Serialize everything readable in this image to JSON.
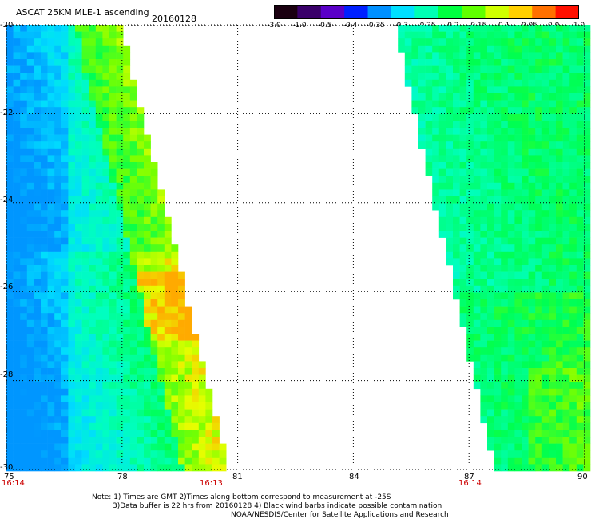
{
  "header": {
    "title": "ASCAT 25KM MLE-1 ascending",
    "date": "20160128"
  },
  "colorbar": {
    "labels": [
      "-3.0",
      "-1.0",
      "-0.5",
      "-0.4",
      "-0.35",
      "-0.3",
      "-0.25",
      "-0.2",
      "-0.15",
      "-0.1",
      "-0.05",
      "0.0",
      "1.0"
    ],
    "colors": [
      "#1a0010",
      "#3a006a",
      "#5a00c8",
      "#0020ff",
      "#0090ff",
      "#00e0ff",
      "#00ffb4",
      "#00ff40",
      "#60ff00",
      "#d0ff00",
      "#ffd000",
      "#ff7000",
      "#ff1000"
    ]
  },
  "map": {
    "y_ticks": [
      "-20",
      "-22",
      "-24",
      "-26",
      "-28",
      "-30"
    ],
    "x_ticks": [
      "75",
      "78",
      "81",
      "84",
      "87",
      "90"
    ],
    "time_labels": [
      "16:14",
      "16:13",
      "16:14"
    ]
  },
  "notes": {
    "line1": "Note: 1) Times are GMT 2)Times along bottom correspond to measurement at -25S",
    "line2": "3)Data buffer is 22 hrs from 20160128 4) Black wind barbs indicate possible contamination",
    "line3": "NOAA/NESDIS/Center for Satellite Applications and Research"
  }
}
